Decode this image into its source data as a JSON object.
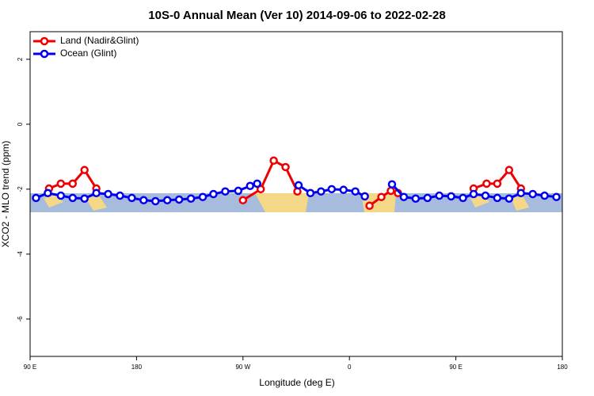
{
  "chart_data": {
    "type": "line",
    "title": "10S-0 Annual Mean (Ver 10)   2014-09-06 to 2022-02-28",
    "x_label": "Longitude (deg E)",
    "y_label": "XCO2 - MLO trend (ppm)",
    "xlim": [
      90,
      540
    ],
    "ylim": [
      -7.15,
      2.85
    ],
    "xticks": [
      {
        "value": 90,
        "label": "90 E"
      },
      180,
      {
        "value": 270,
        "label": "90 W"
      },
      {
        "value": 360,
        "label": "0"
      },
      {
        "value": 450,
        "label": "90 E"
      },
      {
        "value": 540,
        "label": "180"
      }
    ],
    "yticks": [
      -6,
      -4,
      -2,
      0,
      2
    ],
    "legend": "top-left",
    "series": [
      {
        "name": "Land (Nadir&Glint)",
        "color": "#ee0000",
        "x": [
          106,
          116,
          126,
          136,
          146,
          200,
          270,
          285,
          296,
          306,
          316,
          340,
          377,
          387,
          395,
          401,
          430,
          465,
          476,
          485,
          495,
          505
        ],
        "values": [
          -1.98,
          -1.83,
          -1.83,
          -1.41,
          -1.98,
          null,
          -2.34,
          -2.0,
          -1.12,
          -1.32,
          -2.07,
          null,
          -2.51,
          -2.24,
          -2.05,
          -2.12,
          null,
          -1.98,
          -1.83,
          -1.83,
          -1.41,
          -1.98
        ]
      },
      {
        "name": "Ocean (Glint)",
        "color": "#0000ee",
        "x": [
          95,
          105,
          116,
          126,
          136,
          146,
          156,
          166,
          176,
          186,
          196,
          206,
          216,
          226,
          236,
          245,
          255,
          266,
          276,
          282,
          300,
          317,
          327,
          336,
          345,
          355,
          365,
          373,
          385,
          396,
          406,
          416,
          426,
          436,
          446,
          456,
          465,
          475,
          485,
          495,
          505,
          515,
          525,
          535
        ],
        "values": [
          -2.27,
          -2.12,
          -2.2,
          -2.27,
          -2.29,
          -2.12,
          -2.15,
          -2.2,
          -2.27,
          -2.34,
          -2.37,
          -2.34,
          -2.32,
          -2.29,
          -2.24,
          -2.15,
          -2.07,
          -2.05,
          -1.9,
          -1.83,
          null,
          -1.88,
          -2.12,
          -2.07,
          -2.0,
          -2.02,
          -2.07,
          -2.22,
          null,
          -1.85,
          -2.24,
          -2.29,
          -2.27,
          -2.2,
          -2.22,
          -2.27,
          -2.15,
          -2.2,
          -2.27,
          -2.29,
          -2.12,
          -2.15,
          -2.2,
          -2.24
        ]
      }
    ]
  }
}
